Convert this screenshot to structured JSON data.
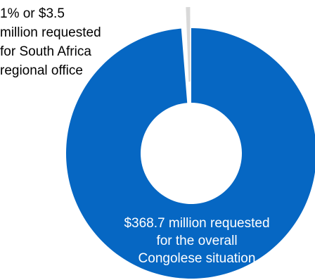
{
  "chart_data": {
    "type": "pie",
    "style": "donut",
    "slices": [
      {
        "value": 368.7,
        "color": "#0667C3",
        "label_lines": [
          "$368.7 million requested",
          "for the overall",
          "Congolese situation"
        ]
      },
      {
        "value": 3.5,
        "color": "#D9D9D9",
        "label_lines": [
          "1% or $3.5",
          "million requested",
          "for South Africa",
          "regional office"
        ]
      }
    ],
    "colors": {
      "background": "#FFFFFF",
      "main_label_text": "#FFFFFF",
      "small_label_text": "#000000"
    }
  }
}
